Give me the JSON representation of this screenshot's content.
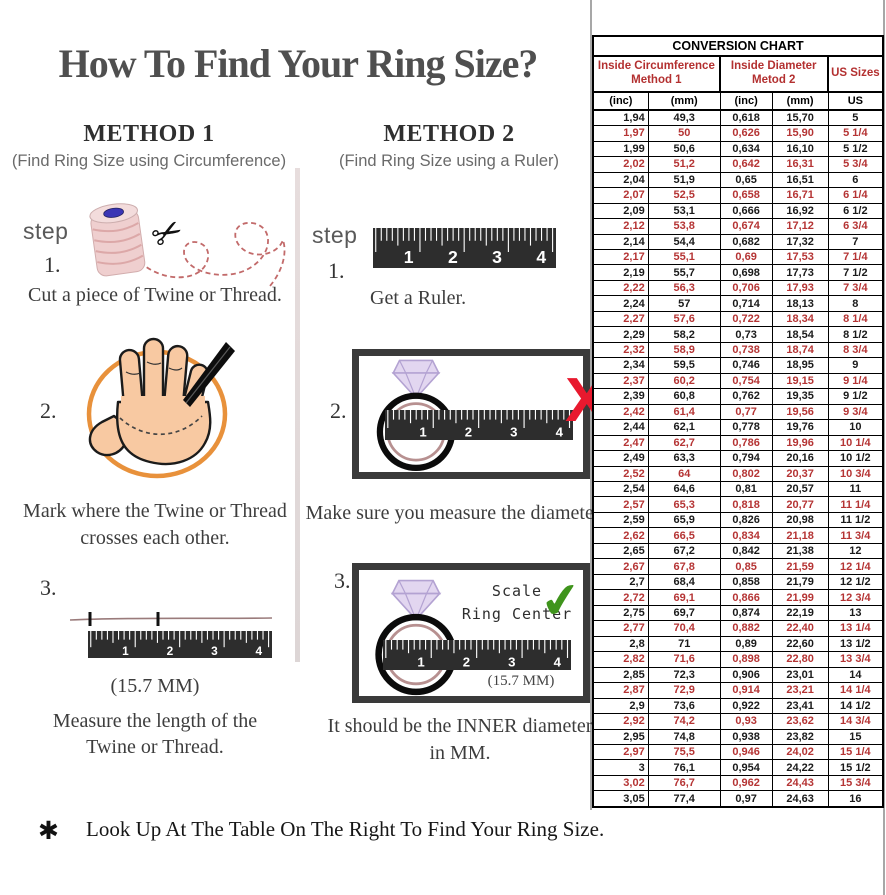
{
  "page": {
    "title": "How To Find Your Ring Size?"
  },
  "methods": {
    "method1": {
      "heading": "METHOD 1",
      "subheading": "(Find Ring Size using Circumference)",
      "step_label": "step",
      "step1_num": "1.",
      "step1_caption": "Cut a piece of Twine or Thread.",
      "step2_num": "2.",
      "step2_caption_line1": "Mark where the Twine or Thread",
      "step2_caption_line2": "crosses each other.",
      "step3_num": "3.",
      "step3_measurement": "(15.7 MM)",
      "step3_caption_line1": "Measure the length of the",
      "step3_caption_line2": "Twine or Thread."
    },
    "method2": {
      "heading": "METHOD 2",
      "subheading": "(Find Ring Size using a Ruler)",
      "step_label": "step",
      "step1_num": "1.",
      "step1_caption": "Get a Ruler.",
      "step2_num": "2.",
      "step2_caption": "Make sure you measure the diameter.",
      "step3_num": "3.",
      "step3_scale_note_line1": "Scale",
      "step3_scale_note_line2": "Ring Center",
      "step3_measurement": "(15.7 MM)",
      "step3_caption_line1": "It should be the INNER diameter",
      "step3_caption_line2": "in MM."
    }
  },
  "footnote": {
    "marker": "✱",
    "text": "Look Up At The Table On The Right To Find Your Ring Size."
  },
  "ruler_numbers": [
    "1",
    "2",
    "3",
    "4"
  ],
  "icons": {
    "scissors": "✂",
    "red_x": "X",
    "green_check": "✔"
  },
  "conversion_chart": {
    "title": "CONVERSION CHART",
    "group_headers": [
      {
        "line1": "Inside Circumference",
        "line2": "Method 1"
      },
      {
        "line1": "Inside Diameter",
        "line2": "Metod 2"
      },
      {
        "line1": "US Sizes",
        "line2": ""
      }
    ],
    "column_headers": [
      "(inc)",
      "(mm)",
      "(inc)",
      "(mm)",
      "US"
    ],
    "rows": [
      [
        "1,94",
        "49,3",
        "0,618",
        "15,70",
        "5"
      ],
      [
        "1,97",
        "50",
        "0,626",
        "15,90",
        "5 1/4"
      ],
      [
        "1,99",
        "50,6",
        "0,634",
        "16,10",
        "5 1/2"
      ],
      [
        "2,02",
        "51,2",
        "0,642",
        "16,31",
        "5 3/4"
      ],
      [
        "2,04",
        "51,9",
        "0,65",
        "16,51",
        "6"
      ],
      [
        "2,07",
        "52,5",
        "0,658",
        "16,71",
        "6 1/4"
      ],
      [
        "2,09",
        "53,1",
        "0,666",
        "16,92",
        "6 1/2"
      ],
      [
        "2,12",
        "53,8",
        "0,674",
        "17,12",
        "6 3/4"
      ],
      [
        "2,14",
        "54,4",
        "0,682",
        "17,32",
        "7"
      ],
      [
        "2,17",
        "55,1",
        "0,69",
        "17,53",
        "7 1/4"
      ],
      [
        "2,19",
        "55,7",
        "0,698",
        "17,73",
        "7 1/2"
      ],
      [
        "2,22",
        "56,3",
        "0,706",
        "17,93",
        "7 3/4"
      ],
      [
        "2,24",
        "57",
        "0,714",
        "18,13",
        "8"
      ],
      [
        "2,27",
        "57,6",
        "0,722",
        "18,34",
        "8 1/4"
      ],
      [
        "2,29",
        "58,2",
        "0,73",
        "18,54",
        "8 1/2"
      ],
      [
        "2,32",
        "58,9",
        "0,738",
        "18,74",
        "8 3/4"
      ],
      [
        "2,34",
        "59,5",
        "0,746",
        "18,95",
        "9"
      ],
      [
        "2,37",
        "60,2",
        "0,754",
        "19,15",
        "9 1/4"
      ],
      [
        "2,39",
        "60,8",
        "0,762",
        "19,35",
        "9 1/2"
      ],
      [
        "2,42",
        "61,4",
        "0,77",
        "19,56",
        "9 3/4"
      ],
      [
        "2,44",
        "62,1",
        "0,778",
        "19,76",
        "10"
      ],
      [
        "2,47",
        "62,7",
        "0,786",
        "19,96",
        "10 1/4"
      ],
      [
        "2,49",
        "63,3",
        "0,794",
        "20,16",
        "10 1/2"
      ],
      [
        "2,52",
        "64",
        "0,802",
        "20,37",
        "10 3/4"
      ],
      [
        "2,54",
        "64,6",
        "0,81",
        "20,57",
        "11"
      ],
      [
        "2,57",
        "65,3",
        "0,818",
        "20,77",
        "11 1/4"
      ],
      [
        "2,59",
        "65,9",
        "0,826",
        "20,98",
        "11 1/2"
      ],
      [
        "2,62",
        "66,5",
        "0,834",
        "21,18",
        "11 3/4"
      ],
      [
        "2,65",
        "67,2",
        "0,842",
        "21,38",
        "12"
      ],
      [
        "2,67",
        "67,8",
        "0,85",
        "21,59",
        "12 1/4"
      ],
      [
        "2,7",
        "68,4",
        "0,858",
        "21,79",
        "12 1/2"
      ],
      [
        "2,72",
        "69,1",
        "0,866",
        "21,99",
        "12 3/4"
      ],
      [
        "2,75",
        "69,7",
        "0,874",
        "22,19",
        "13"
      ],
      [
        "2,77",
        "70,4",
        "0,882",
        "22,40",
        "13 1/4"
      ],
      [
        "2,8",
        "71",
        "0,89",
        "22,60",
        "13 1/2"
      ],
      [
        "2,82",
        "71,6",
        "0,898",
        "22,80",
        "13 3/4"
      ],
      [
        "2,85",
        "72,3",
        "0,906",
        "23,01",
        "14"
      ],
      [
        "2,87",
        "72,9",
        "0,914",
        "23,21",
        "14 1/4"
      ],
      [
        "2,9",
        "73,6",
        "0,922",
        "23,41",
        "14 1/2"
      ],
      [
        "2,92",
        "74,2",
        "0,93",
        "23,62",
        "14 3/4"
      ],
      [
        "2,95",
        "74,8",
        "0,938",
        "23,82",
        "15"
      ],
      [
        "2,97",
        "75,5",
        "0,946",
        "24,02",
        "15 1/4"
      ],
      [
        "3",
        "76,1",
        "0,954",
        "24,22",
        "15 1/2"
      ],
      [
        "3,02",
        "76,7",
        "0,962",
        "24,43",
        "15 3/4"
      ],
      [
        "3,05",
        "77,4",
        "0,97",
        "24,63",
        "16"
      ]
    ],
    "colors": {
      "row_black": "#1a1a1a",
      "row_red": "#b53434",
      "header_red": "#b33030"
    }
  }
}
